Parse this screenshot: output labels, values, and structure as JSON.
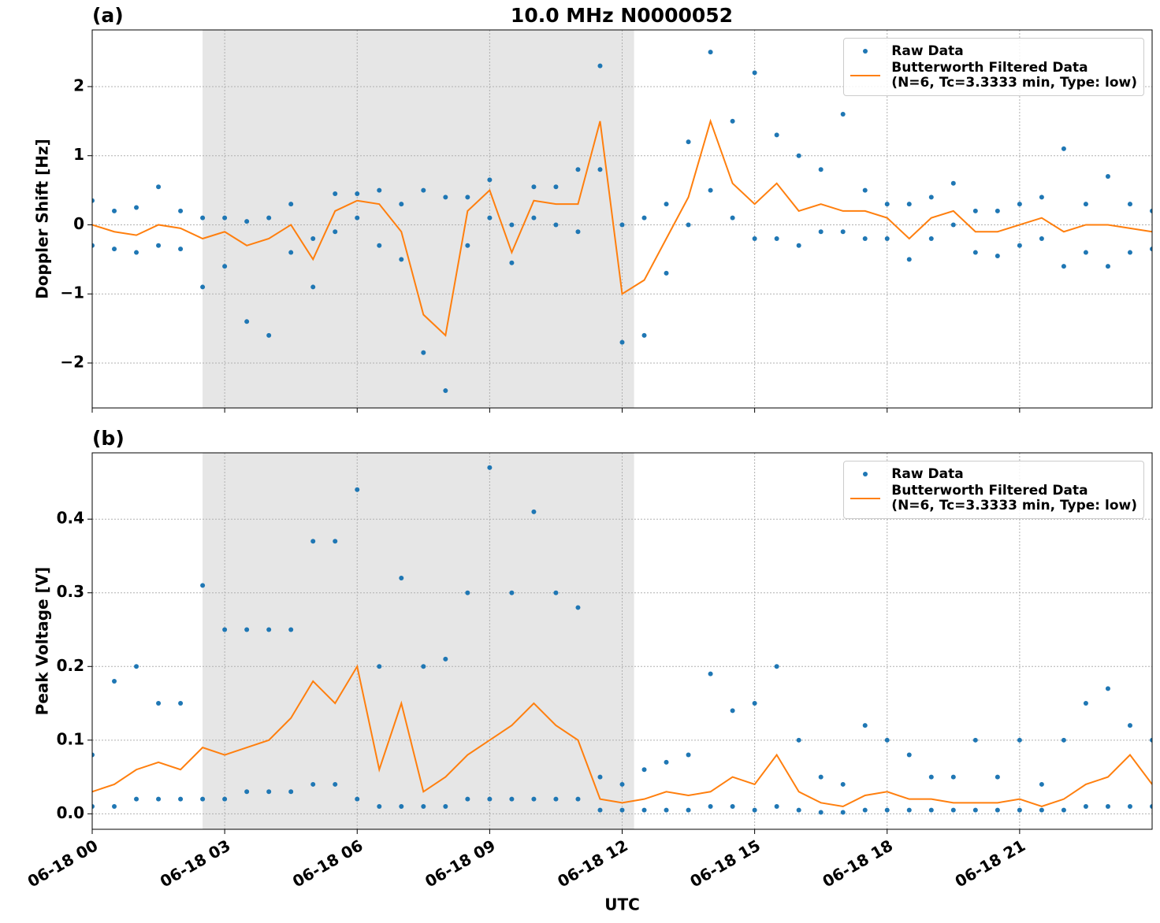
{
  "chart_data": [
    {
      "type": "scatter",
      "title": "10.0 MHz N0000052",
      "panel_label": "(a)",
      "ylabel": "Doppler Shift [Hz]",
      "xlim": [
        0,
        24
      ],
      "ylim": [
        -2.65,
        2.82
      ],
      "yticks": [
        {
          "value": -2,
          "label": "−2"
        },
        {
          "value": -1,
          "label": "−1"
        },
        0,
        1,
        2
      ],
      "grid": true,
      "shade": [
        2.5,
        12.27
      ],
      "legend": "upper right",
      "series": [
        {
          "name": "Raw Data",
          "kind": "points",
          "color": "#1f77b4",
          "x": [
            0,
            0,
            0.5,
            0.5,
            1,
            1,
            1.5,
            1.5,
            2,
            2,
            2.5,
            2.5,
            3,
            3,
            3.5,
            3.5,
            4,
            4,
            4.5,
            4.5,
            5,
            5,
            5.5,
            5.5,
            6,
            6,
            6.5,
            6.5,
            7,
            7,
            7.5,
            7.5,
            8,
            8,
            8.5,
            8.5,
            9,
            9,
            9.5,
            9.5,
            10,
            10,
            10.5,
            10.5,
            11,
            11,
            11.5,
            11.5,
            12,
            12,
            12.5,
            12.5,
            13,
            13,
            13.5,
            13.5,
            14,
            14,
            14.5,
            14.5,
            15,
            15,
            15.5,
            15.5,
            16,
            16,
            16.5,
            16.5,
            17,
            17,
            17.5,
            17.5,
            18,
            18,
            18.5,
            18.5,
            19,
            19,
            19.5,
            19.5,
            20,
            20,
            20.5,
            20.5,
            21,
            21,
            21.5,
            21.5,
            22,
            22,
            22.5,
            22.5,
            23,
            23,
            23.5,
            23.5,
            24,
            24
          ],
          "values": [
            0.35,
            -0.3,
            0.2,
            -0.35,
            0.25,
            -0.4,
            0.55,
            -0.3,
            0.2,
            -0.35,
            0.1,
            -0.9,
            0.1,
            -0.6,
            0.05,
            -1.4,
            0.1,
            -1.6,
            0.3,
            -0.4,
            -0.2,
            -0.9,
            0.45,
            -0.1,
            0.45,
            0.1,
            0.5,
            -0.3,
            0.3,
            -0.5,
            0.5,
            -1.85,
            0.4,
            -2.4,
            0.4,
            -0.3,
            0.65,
            0.1,
            0,
            -0.55,
            0.55,
            0.1,
            0.55,
            0,
            0.8,
            -0.1,
            2.3,
            0.8,
            0,
            -1.7,
            0.1,
            -1.6,
            0.3,
            -0.7,
            1.2,
            0,
            2.5,
            0.5,
            1.5,
            0.1,
            2.2,
            -0.2,
            1.3,
            -0.2,
            1,
            -0.3,
            0.8,
            -0.1,
            1.6,
            -0.1,
            0.5,
            -0.2,
            0.3,
            -0.2,
            0.3,
            -0.5,
            0.4,
            -0.2,
            0.6,
            0,
            0.2,
            -0.4,
            0.2,
            -0.45,
            0.3,
            -0.3,
            0.4,
            -0.2,
            1.1,
            -0.6,
            0.3,
            -0.4,
            0.7,
            -0.6,
            0.3,
            -0.4,
            0.2,
            -0.35
          ]
        },
        {
          "name": "Butterworth Filtered Data\n(N=6, Tc=3.3333 min, Type: low)",
          "kind": "line",
          "color": "#ff7f0e",
          "x": [
            0,
            0.5,
            1,
            1.5,
            2,
            2.5,
            3,
            3.5,
            4,
            4.5,
            5,
            5.5,
            6,
            6.5,
            7,
            7.5,
            8,
            8.5,
            9,
            9.5,
            10,
            10.5,
            11,
            11.5,
            12,
            12.5,
            13,
            13.5,
            14,
            14.5,
            15,
            15.5,
            16,
            16.5,
            17,
            17.5,
            18,
            18.5,
            19,
            19.5,
            20,
            20.5,
            21,
            21.5,
            22,
            22.5,
            23,
            23.5,
            24
          ],
          "values": [
            0,
            -0.1,
            -0.15,
            0,
            -0.05,
            -0.2,
            -0.1,
            -0.3,
            -0.2,
            0,
            -0.5,
            0.2,
            0.35,
            0.3,
            -0.1,
            -1.3,
            -1.6,
            0.2,
            0.5,
            -0.4,
            0.35,
            0.3,
            0.3,
            1.5,
            -1,
            -0.8,
            -0.2,
            0.4,
            1.5,
            0.6,
            0.3,
            0.6,
            0.2,
            0.3,
            0.2,
            0.2,
            0.1,
            -0.2,
            0.1,
            0.2,
            -0.1,
            -0.1,
            0,
            0.1,
            -0.1,
            0,
            0,
            -0.05,
            -0.1
          ]
        }
      ]
    },
    {
      "type": "scatter",
      "panel_label": "(b)",
      "ylabel": "Peak Voltage [V]",
      "xlabel": "UTC",
      "xlim": [
        0,
        24
      ],
      "ylim": [
        -0.021,
        0.49
      ],
      "xticks": [
        {
          "value": 0,
          "label": "06-18 00"
        },
        {
          "value": 3,
          "label": "06-18 03"
        },
        {
          "value": 6,
          "label": "06-18 06"
        },
        {
          "value": 9,
          "label": "06-18 09"
        },
        {
          "value": 12,
          "label": "06-18 12"
        },
        {
          "value": 15,
          "label": "06-18 15"
        },
        {
          "value": 18,
          "label": "06-18 18"
        },
        {
          "value": 21,
          "label": "06-18 21"
        }
      ],
      "yticks": [
        {
          "value": 0,
          "label": "0.0"
        },
        0.1,
        0.2,
        0.3,
        0.4
      ],
      "grid": true,
      "shade": [
        2.5,
        12.27
      ],
      "legend": "upper right",
      "series": [
        {
          "name": "Raw Data",
          "kind": "points",
          "color": "#1f77b4",
          "x": [
            0,
            0,
            0.5,
            0.5,
            1,
            1,
            1.5,
            1.5,
            2,
            2,
            2.5,
            2.5,
            3,
            3,
            3.5,
            3.5,
            4,
            4,
            4.5,
            4.5,
            5,
            5,
            5.5,
            5.5,
            6,
            6,
            6.5,
            6.5,
            7,
            7,
            7.5,
            7.5,
            8,
            8,
            8.5,
            8.5,
            9,
            9,
            9.5,
            9.5,
            10,
            10,
            10.5,
            10.5,
            11,
            11,
            11.5,
            11.5,
            12,
            12,
            12.5,
            12.5,
            13,
            13,
            13.5,
            13.5,
            14,
            14,
            14.5,
            14.5,
            15,
            15,
            15.5,
            15.5,
            16,
            16,
            16.5,
            16.5,
            17,
            17,
            17.5,
            17.5,
            18,
            18,
            18.5,
            18.5,
            19,
            19,
            19.5,
            19.5,
            20,
            20,
            20.5,
            20.5,
            21,
            21,
            21.5,
            21.5,
            22,
            22,
            22.5,
            22.5,
            23,
            23,
            23.5,
            23.5,
            24,
            24
          ],
          "values": [
            0.08,
            0.01,
            0.18,
            0.01,
            0.2,
            0.02,
            0.15,
            0.02,
            0.15,
            0.02,
            0.31,
            0.02,
            0.25,
            0.02,
            0.25,
            0.03,
            0.25,
            0.03,
            0.25,
            0.03,
            0.37,
            0.04,
            0.37,
            0.04,
            0.44,
            0.02,
            0.2,
            0.01,
            0.32,
            0.01,
            0.2,
            0.01,
            0.21,
            0.01,
            0.3,
            0.02,
            0.47,
            0.02,
            0.3,
            0.02,
            0.41,
            0.02,
            0.3,
            0.02,
            0.28,
            0.02,
            0.05,
            0.005,
            0.04,
            0.005,
            0.06,
            0.005,
            0.07,
            0.005,
            0.08,
            0.005,
            0.19,
            0.01,
            0.14,
            0.01,
            0.15,
            0.005,
            0.2,
            0.01,
            0.1,
            0.005,
            0.05,
            0.002,
            0.04,
            0.002,
            0.12,
            0.005,
            0.1,
            0.005,
            0.08,
            0.005,
            0.05,
            0.005,
            0.05,
            0.005,
            0.1,
            0.005,
            0.05,
            0.005,
            0.1,
            0.005,
            0.04,
            0.005,
            0.1,
            0.005,
            0.15,
            0.01,
            0.17,
            0.01,
            0.12,
            0.01,
            0.1,
            0.01
          ]
        },
        {
          "name": "Butterworth Filtered Data\n(N=6, Tc=3.3333 min, Type: low)",
          "kind": "line",
          "color": "#ff7f0e",
          "x": [
            0,
            0.5,
            1,
            1.5,
            2,
            2.5,
            3,
            3.5,
            4,
            4.5,
            5,
            5.5,
            6,
            6.5,
            7,
            7.5,
            8,
            8.5,
            9,
            9.5,
            10,
            10.5,
            11,
            11.5,
            12,
            12.5,
            13,
            13.5,
            14,
            14.5,
            15,
            15.5,
            16,
            16.5,
            17,
            17.5,
            18,
            18.5,
            19,
            19.5,
            20,
            20.5,
            21,
            21.5,
            22,
            22.5,
            23,
            23.5,
            24
          ],
          "values": [
            0.03,
            0.04,
            0.06,
            0.07,
            0.06,
            0.09,
            0.08,
            0.09,
            0.1,
            0.13,
            0.18,
            0.15,
            0.2,
            0.06,
            0.15,
            0.03,
            0.05,
            0.08,
            0.1,
            0.12,
            0.15,
            0.12,
            0.1,
            0.02,
            0.015,
            0.02,
            0.03,
            0.025,
            0.03,
            0.05,
            0.04,
            0.08,
            0.03,
            0.015,
            0.01,
            0.025,
            0.03,
            0.02,
            0.02,
            0.015,
            0.015,
            0.015,
            0.02,
            0.01,
            0.02,
            0.04,
            0.05,
            0.08,
            0.04
          ]
        }
      ]
    }
  ]
}
